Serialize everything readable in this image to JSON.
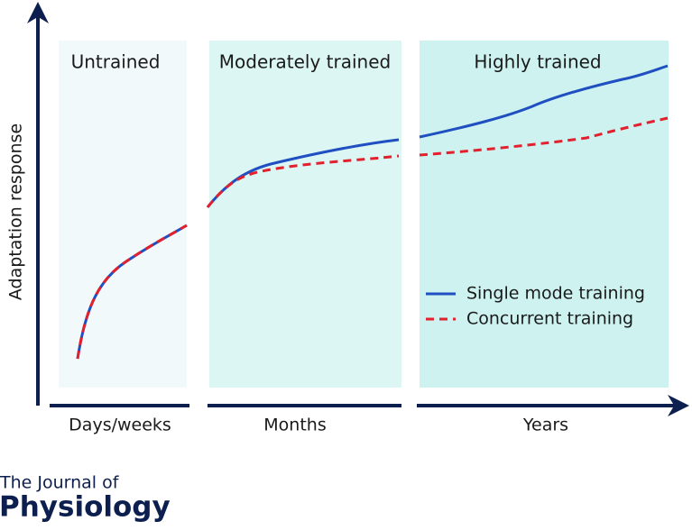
{
  "panels": [
    {
      "label": "Untrained",
      "period": "Days/weeks"
    },
    {
      "label": "Moderately trained",
      "period": "Months"
    },
    {
      "label": "Highly trained",
      "period": "Years"
    }
  ],
  "y_axis_label": "Adaptation response",
  "legend": [
    {
      "name": "Single mode training",
      "color": "#1f4fc0"
    },
    {
      "name": "Concurrent training",
      "color": "#e3202d"
    }
  ],
  "logo": {
    "line1": "The Journal of",
    "line2": "Physiology"
  }
}
